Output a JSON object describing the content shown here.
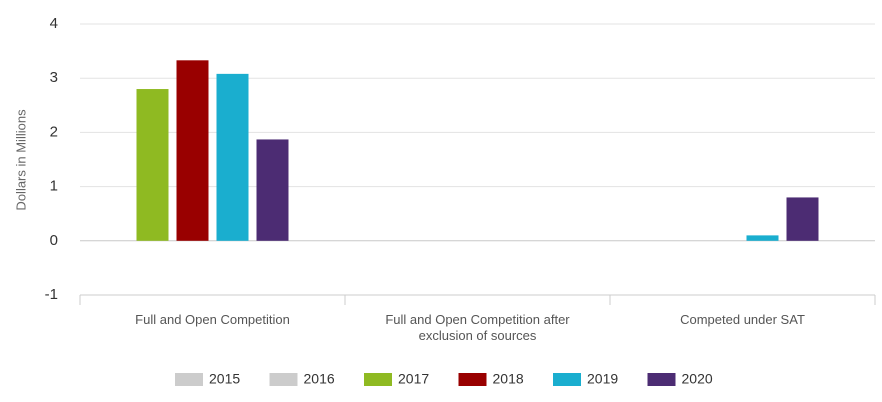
{
  "chart_data": {
    "type": "bar",
    "y_label": "Dollars in Millions",
    "categories": [
      "Full and Open Competition",
      "Full and Open Competition after exclusion of sources",
      "Competed under SAT"
    ],
    "series": [
      {
        "name": "2015",
        "color": "#cccccc",
        "visible": false,
        "values": [
          null,
          null,
          null
        ]
      },
      {
        "name": "2016",
        "color": "#cccccc",
        "visible": false,
        "values": [
          null,
          null,
          null
        ]
      },
      {
        "name": "2017",
        "color": "#8fba22",
        "visible": true,
        "values": [
          2.8,
          0,
          0
        ]
      },
      {
        "name": "2018",
        "color": "#990000",
        "visible": true,
        "values": [
          3.33,
          0,
          0
        ]
      },
      {
        "name": "2019",
        "color": "#1aaecf",
        "visible": true,
        "values": [
          3.08,
          0,
          0.1
        ]
      },
      {
        "name": "2020",
        "color": "#4c2c73",
        "visible": true,
        "values": [
          1.87,
          0,
          0.8
        ]
      }
    ],
    "ylim": [
      -1,
      4
    ],
    "yticks": [
      -1,
      0,
      1,
      2,
      3,
      4
    ],
    "grid": true,
    "legend": "bottom"
  }
}
